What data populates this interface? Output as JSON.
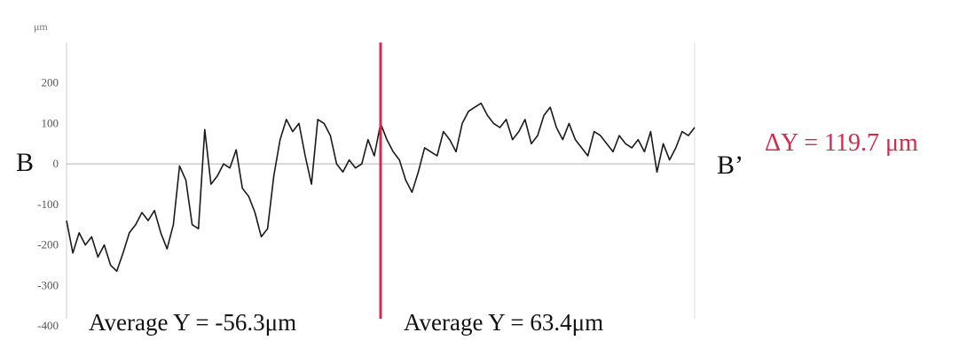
{
  "chart_data": {
    "type": "line",
    "unit_label": "μm",
    "ylim": [
      -400,
      300
    ],
    "yticks": [
      -400,
      -300,
      -200,
      -100,
      0,
      100,
      200
    ],
    "left_end_label": "B",
    "right_end_label": "B’",
    "delta_label": "ΔY = 119.7 μm",
    "annotations": {
      "left_average": "Average Y = -56.3μm",
      "right_average": "Average Y = 63.4μm"
    },
    "split_position": 0.5,
    "grid": false,
    "colors": {
      "line": "#1a1a1a",
      "divider": "#d62a4a",
      "delta": "#d62a4a",
      "zero_line": "#cccccc"
    },
    "series": [
      {
        "x": [
          0,
          0.01,
          0.02,
          0.03,
          0.04,
          0.05,
          0.06,
          0.07,
          0.08,
          0.09,
          0.1,
          0.11,
          0.12,
          0.13,
          0.14,
          0.15,
          0.16,
          0.17,
          0.18,
          0.19,
          0.2,
          0.21,
          0.22,
          0.23,
          0.24,
          0.25,
          0.26,
          0.27,
          0.28,
          0.29,
          0.3,
          0.31,
          0.32,
          0.33,
          0.34,
          0.35,
          0.36,
          0.37,
          0.38,
          0.39,
          0.4,
          0.41,
          0.42,
          0.43,
          0.44,
          0.45,
          0.46,
          0.47,
          0.48,
          0.49,
          0.5,
          0.51,
          0.52,
          0.53,
          0.54,
          0.55,
          0.56,
          0.57,
          0.58,
          0.59,
          0.6,
          0.61,
          0.62,
          0.63,
          0.64,
          0.65,
          0.66,
          0.67,
          0.68,
          0.69,
          0.7,
          0.71,
          0.72,
          0.73,
          0.74,
          0.75,
          0.76,
          0.77,
          0.78,
          0.79,
          0.8,
          0.81,
          0.82,
          0.83,
          0.84,
          0.85,
          0.86,
          0.87,
          0.88,
          0.89,
          0.9,
          0.91,
          0.92,
          0.93,
          0.94,
          0.95,
          0.96,
          0.97,
          0.98,
          0.99,
          1.0
        ],
        "y": [
          -140,
          -220,
          -170,
          -200,
          -180,
          -230,
          -200,
          -250,
          -265,
          -220,
          -170,
          -150,
          -120,
          -140,
          -115,
          -170,
          -210,
          -150,
          -5,
          -40,
          -150,
          -160,
          85,
          -50,
          -30,
          0,
          -10,
          35,
          -60,
          -80,
          -120,
          -180,
          -160,
          -30,
          60,
          110,
          80,
          100,
          20,
          -50,
          110,
          100,
          70,
          0,
          -20,
          10,
          -10,
          0,
          60,
          20,
          100,
          60,
          30,
          10,
          -40,
          -70,
          -20,
          40,
          30,
          20,
          80,
          60,
          30,
          100,
          130,
          140,
          150,
          120,
          100,
          90,
          110,
          60,
          80,
          110,
          50,
          70,
          120,
          140,
          90,
          60,
          100,
          60,
          40,
          20,
          80,
          70,
          50,
          30,
          70,
          50,
          40,
          60,
          30,
          80,
          -20,
          50,
          10,
          40,
          80,
          70,
          90
        ]
      }
    ]
  }
}
